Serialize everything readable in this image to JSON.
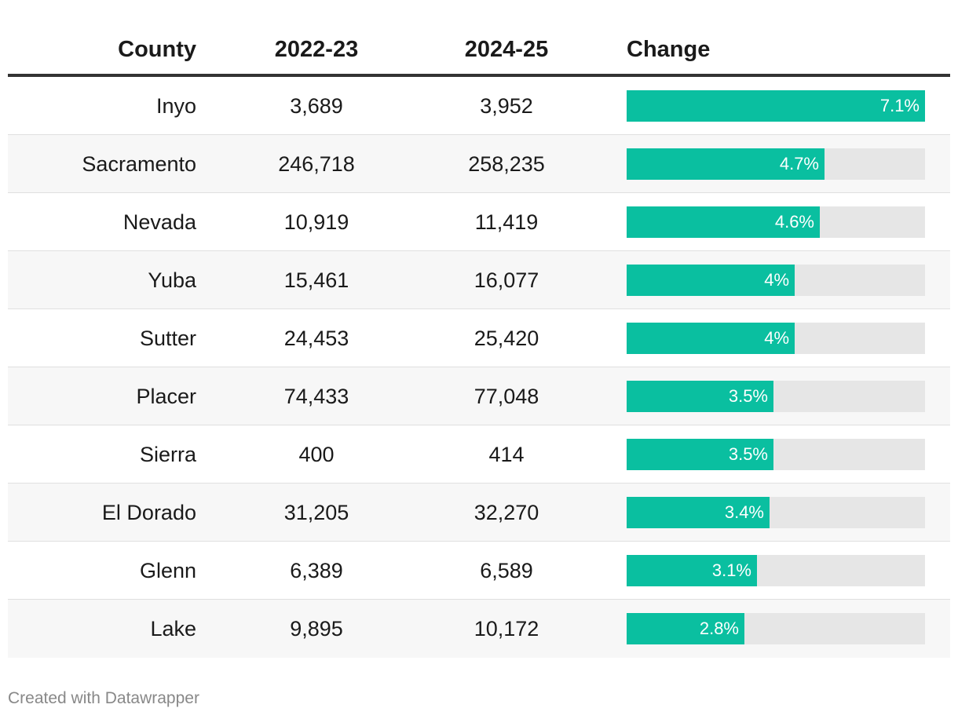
{
  "headers": {
    "county": "County",
    "y1": "2022-23",
    "y2": "2024-25",
    "change": "Change"
  },
  "footer": {
    "credit": "Created with Datawrapper"
  },
  "colors": {
    "bar": "#0abfa0",
    "track": "#e6e6e6",
    "header_rule": "#333333"
  },
  "chart_data": {
    "type": "table",
    "columns": [
      "County",
      "2022-23",
      "2024-25",
      "Change"
    ],
    "bar_max": 7.1,
    "rows": [
      {
        "county": "Inyo",
        "y1": "3,689",
        "y2": "3,952",
        "change": 7.1,
        "change_label": "7.1%"
      },
      {
        "county": "Sacramento",
        "y1": "246,718",
        "y2": "258,235",
        "change": 4.7,
        "change_label": "4.7%"
      },
      {
        "county": "Nevada",
        "y1": "10,919",
        "y2": "11,419",
        "change": 4.6,
        "change_label": "4.6%"
      },
      {
        "county": "Yuba",
        "y1": "15,461",
        "y2": "16,077",
        "change": 4.0,
        "change_label": "4%"
      },
      {
        "county": "Sutter",
        "y1": "24,453",
        "y2": "25,420",
        "change": 4.0,
        "change_label": "4%"
      },
      {
        "county": "Placer",
        "y1": "74,433",
        "y2": "77,048",
        "change": 3.5,
        "change_label": "3.5%"
      },
      {
        "county": "Sierra",
        "y1": "400",
        "y2": "414",
        "change": 3.5,
        "change_label": "3.5%"
      },
      {
        "county": "El Dorado",
        "y1": "31,205",
        "y2": "32,270",
        "change": 3.4,
        "change_label": "3.4%"
      },
      {
        "county": "Glenn",
        "y1": "6,389",
        "y2": "6,589",
        "change": 3.1,
        "change_label": "3.1%"
      },
      {
        "county": "Lake",
        "y1": "9,895",
        "y2": "10,172",
        "change": 2.8,
        "change_label": "2.8%"
      }
    ]
  }
}
